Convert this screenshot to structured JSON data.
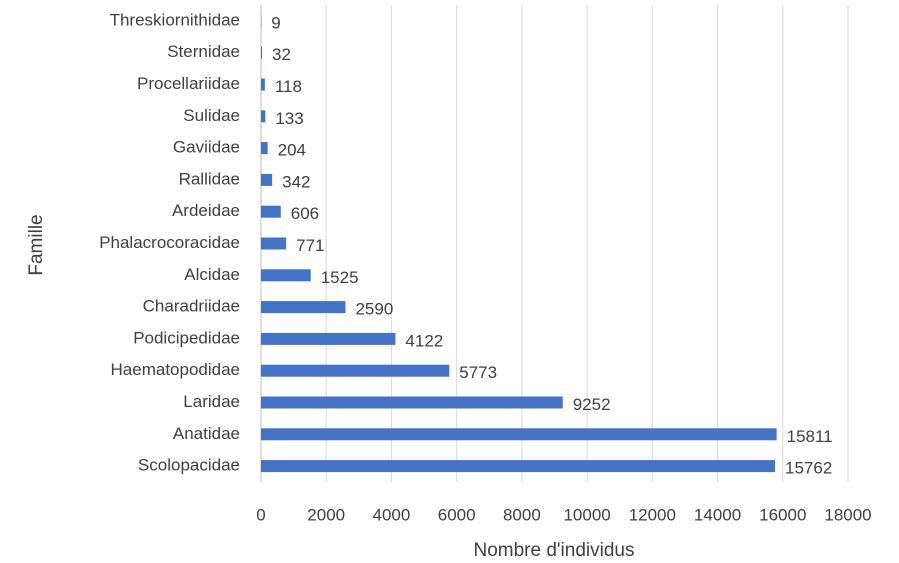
{
  "chart_data": {
    "type": "bar",
    "orientation": "horizontal",
    "categories": [
      "Threskiornithidae",
      "Sternidae",
      "Procellariidae",
      "Sulidae",
      "Gaviidae",
      "Rallidae",
      "Ardeidae",
      "Phalacrocoracidae",
      "Alcidae",
      "Charadriidae",
      "Podicipedidae",
      "Haematopodidae",
      "Laridae",
      "Anatidae",
      "Scolopacidae"
    ],
    "values": [
      9,
      32,
      118,
      133,
      204,
      342,
      606,
      771,
      1525,
      2590,
      4122,
      5773,
      9252,
      15811,
      15762
    ],
    "color": "#4472c4",
    "xlabel": "Nombre d'individus",
    "ylabel": "Famille",
    "xlim": [
      0,
      18000
    ],
    "xticks": [
      0,
      2000,
      4000,
      6000,
      8000,
      10000,
      12000,
      14000,
      16000,
      18000
    ],
    "grid": true
  }
}
